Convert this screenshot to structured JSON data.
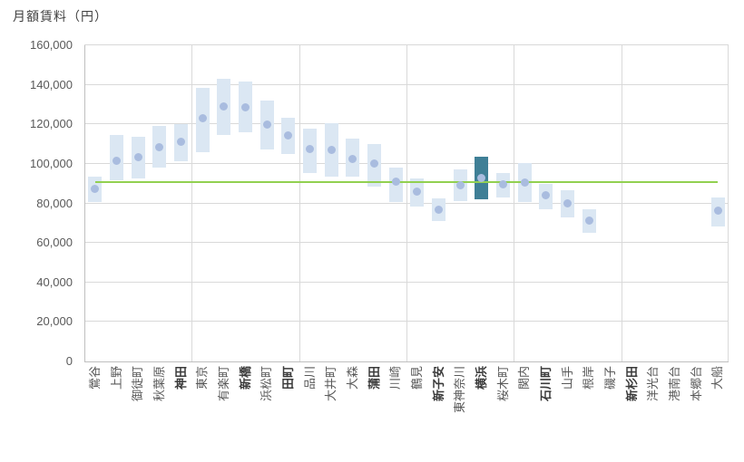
{
  "title": "月額賃料（円）",
  "colors": {
    "bar": "#dbe7f3",
    "bar_highlight": "#3f7f96",
    "dot": "#a9bcdf",
    "reference_line": "#92d050",
    "grid": "#d9d9d9",
    "axis": "#bfbfbf",
    "label_text": "#595959"
  },
  "chart_data": {
    "type": "bar",
    "subtype": "floating-range-bars-with-median-dot",
    "title": "月額賃料（円）",
    "ylabel": "月額賃料（円）",
    "ylim": [
      0,
      160000
    ],
    "ytick_interval": 20000,
    "ytick_labels": [
      "0",
      "20,000",
      "40,000",
      "60,000",
      "80,000",
      "100,000",
      "120,000",
      "140,000",
      "160,000"
    ],
    "grid": true,
    "vertical_gridline_every_n_categories": 5,
    "legend": "none",
    "reference_line": {
      "value": 91000
    },
    "highlighted_category": "横浜",
    "categories": [
      "鶯谷",
      "上野",
      "御徒町",
      "秋葉原",
      "神田",
      "東京",
      "有楽町",
      "新橋",
      "浜松町",
      "田町",
      "品川",
      "大井町",
      "大森",
      "蒲田",
      "川崎",
      "鶴見",
      "新子安",
      "東神奈川",
      "横浜",
      "桜木町",
      "関内",
      "石川町",
      "山手",
      "根岸",
      "磯子",
      "新杉田",
      "洋光台",
      "港南台",
      "本郷台",
      "大船"
    ],
    "series": [
      {
        "name": "range_low",
        "values": [
          80500,
          91500,
          92500,
          98000,
          101500,
          106000,
          114500,
          116000,
          107500,
          105000,
          95500,
          93500,
          93500,
          88500,
          80500,
          78500,
          71000,
          81000,
          82000,
          83000,
          80500,
          77000,
          73000,
          65000,
          null,
          null,
          null,
          null,
          null,
          68500
        ]
      },
      {
        "name": "range_high",
        "values": [
          93500,
          114500,
          113500,
          119000,
          120000,
          138500,
          143000,
          141500,
          132000,
          123500,
          118000,
          120500,
          113000,
          110000,
          98000,
          92500,
          82500,
          97000,
          103500,
          95500,
          100500,
          90000,
          86500,
          77000,
          null,
          null,
          null,
          null,
          null,
          83000
        ]
      },
      {
        "name": "typical",
        "values": [
          87500,
          101500,
          103500,
          108500,
          111000,
          123000,
          129000,
          128500,
          120000,
          114500,
          107500,
          107000,
          102500,
          100000,
          91000,
          86000,
          77000,
          89000,
          93000,
          89500,
          90500,
          84000,
          80000,
          71500,
          null,
          null,
          null,
          null,
          null,
          76500
        ]
      }
    ],
    "bold_categories": [
      "神田",
      "新橋",
      "田町",
      "蒲田",
      "新子安",
      "横浜",
      "石川町",
      "新杉田"
    ]
  }
}
